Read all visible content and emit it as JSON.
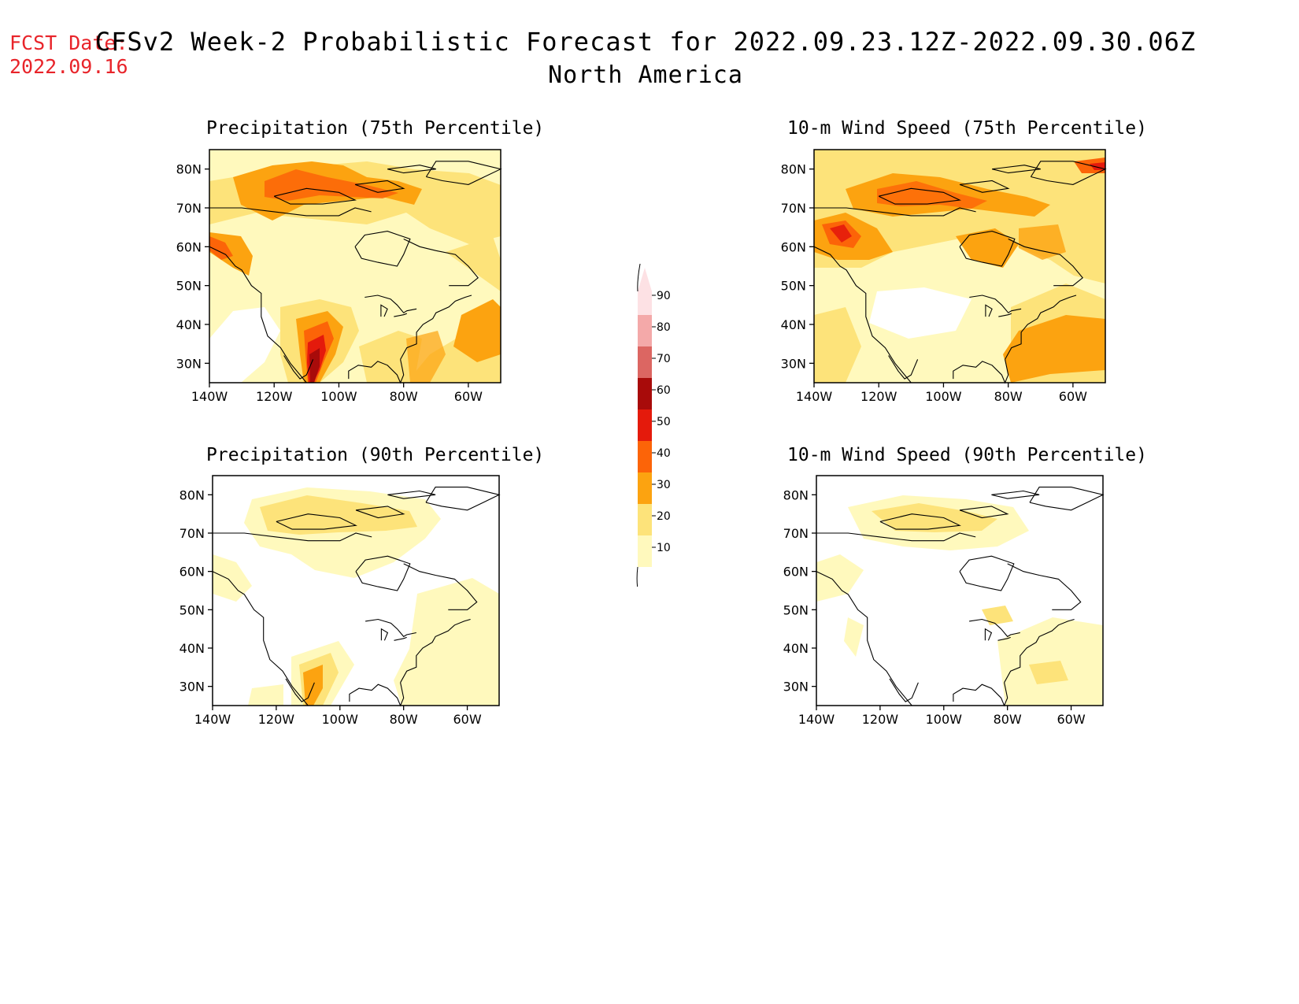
{
  "header": {
    "fcst_label": "FCST Date:",
    "fcst_date": "2022.09.16",
    "title": "CFSv2 Week-2 Probabilistic Forecast for 2022.09.23.12Z-2022.09.30.06Z",
    "subtitle": "North America"
  },
  "panels": [
    {
      "title": "Precipitation (75th Percentile)"
    },
    {
      "title": "10-m Wind Speed (75th Percentile)"
    },
    {
      "title": "Precipitation (90th Percentile)"
    },
    {
      "title": "10-m Wind Speed (90th Percentile)"
    }
  ],
  "axes": {
    "lat_labels": [
      "80N",
      "70N",
      "60N",
      "50N",
      "40N",
      "30N"
    ],
    "lat_values": [
      80,
      70,
      60,
      50,
      40,
      30
    ],
    "lon_labels": [
      "140W",
      "120W",
      "100W",
      "80W",
      "60W"
    ],
    "lon_values": [
      -140,
      -120,
      -100,
      -80,
      -60
    ],
    "lat_range": [
      25,
      85
    ],
    "lon_range": [
      -140,
      -50
    ]
  },
  "colorbar": {
    "labels": [
      "90",
      "80",
      "70",
      "60",
      "50",
      "40",
      "30",
      "20",
      "10"
    ],
    "levels": [
      10,
      20,
      30,
      40,
      50,
      60,
      70,
      80,
      90
    ],
    "colors": [
      "#fff9bd",
      "#fde37a",
      "#fca310",
      "#fc6408",
      "#e41a0c",
      "#a80b0a",
      "#dc6662",
      "#f4a9a9",
      "#fde1e4"
    ]
  },
  "colors": {
    "c10": "#fff9bd",
    "c20": "#fde37a",
    "c30": "#fca310",
    "c40": "#fc6408",
    "c50": "#e41a0c",
    "c60": "#a80b0a"
  }
}
